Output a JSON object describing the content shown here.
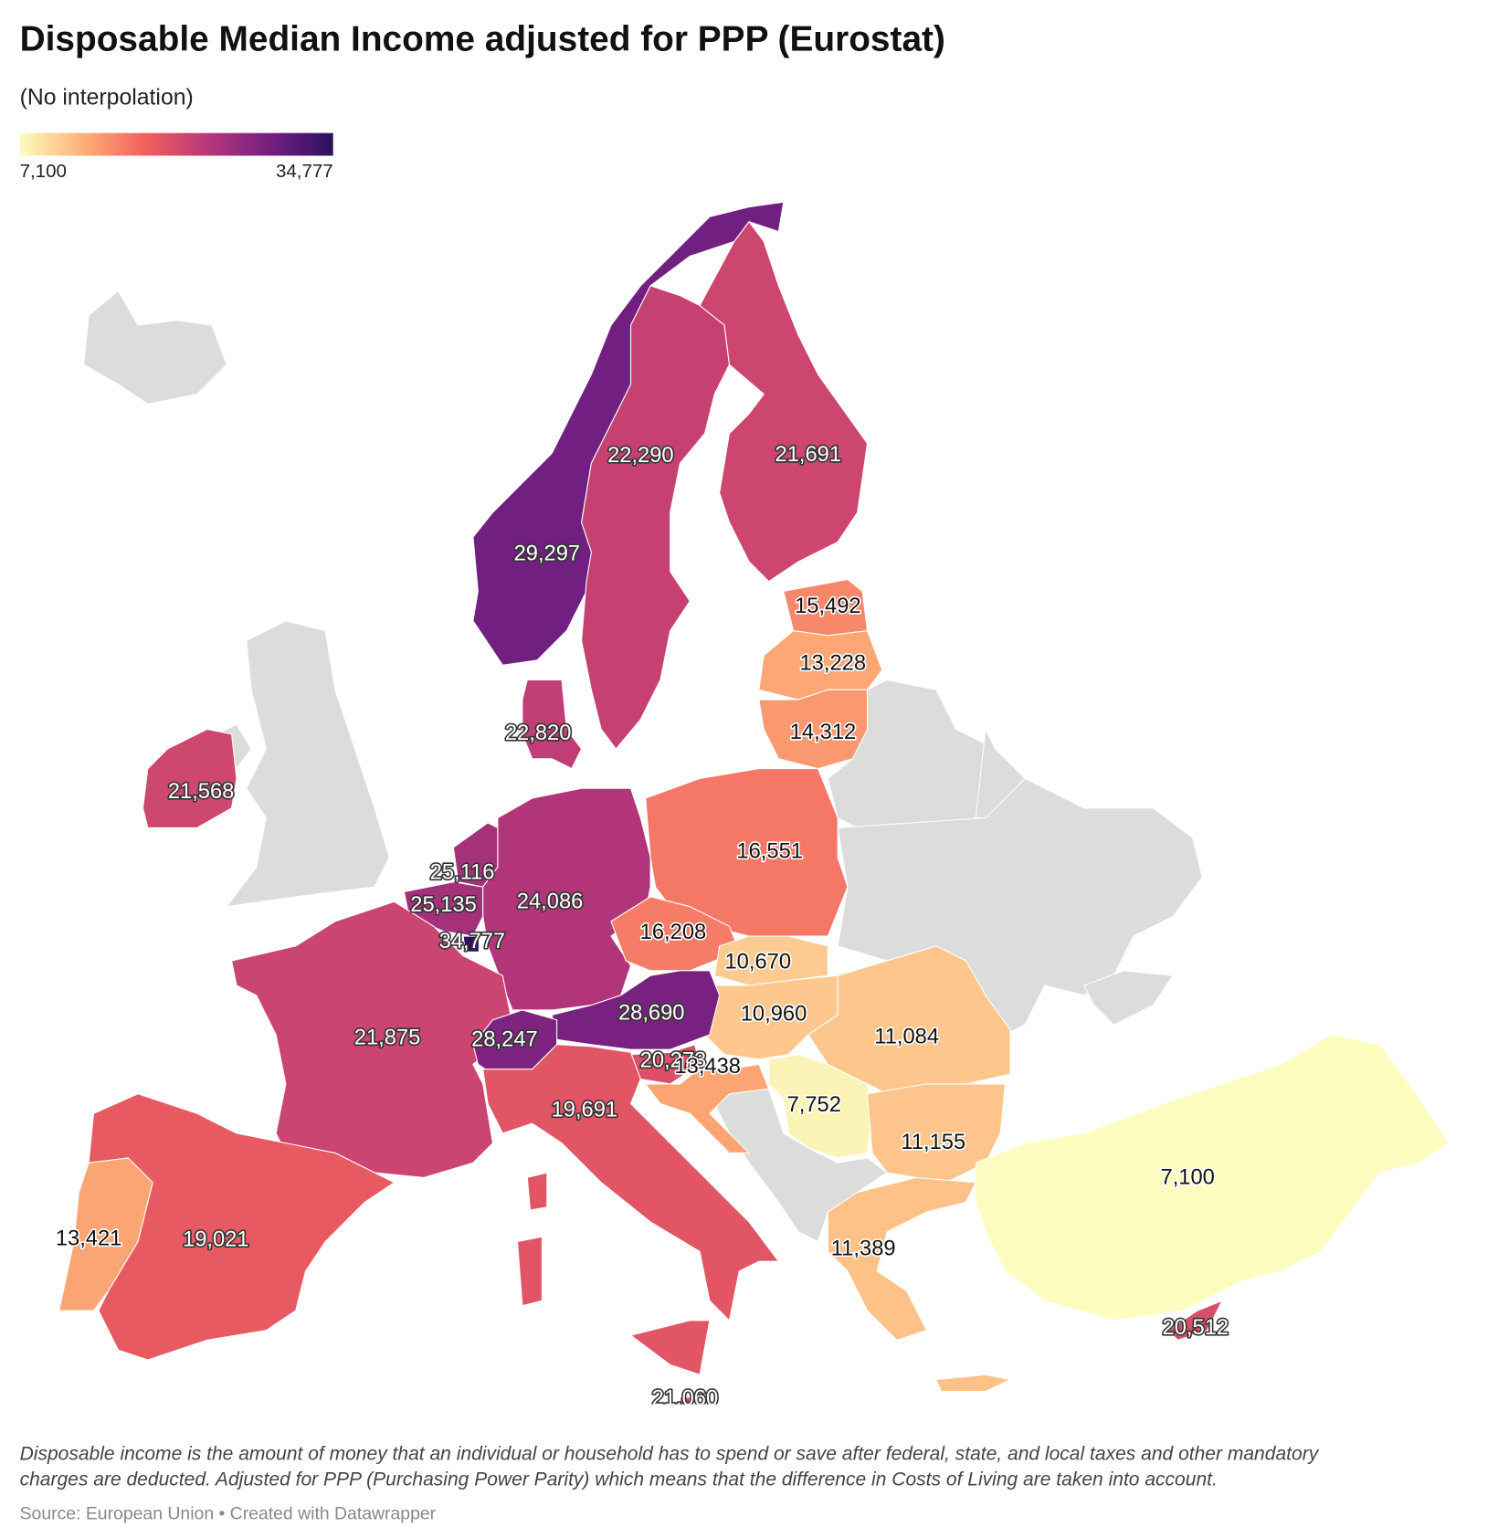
{
  "chart_data": {
    "type": "choropleth",
    "title": "Disposable Median Income adjusted for PPP (Eurostat)",
    "subtitle": "(No interpolation)",
    "colorscale": {
      "min": {
        "value": 7100,
        "label": "7,100"
      },
      "max": {
        "value": 34777,
        "label": "34,777"
      },
      "colors": [
        "#fcfdbf",
        "#feb078",
        "#f1605d",
        "#b73779",
        "#721f81",
        "#2c115f"
      ]
    },
    "values": [
      29297,
      22290,
      21691,
      15492,
      13228,
      14312,
      22820,
      21568,
      25116,
      25135,
      34777,
      24086,
      16551,
      16208,
      10670,
      10960,
      28690,
      21875,
      28247,
      20273,
      13438,
      19691,
      7752,
      11084,
      11155,
      11389,
      7100,
      20512,
      13421,
      19021,
      21060
    ],
    "value_labels": [
      "29,297",
      "22,290",
      "21,691",
      "15,492",
      "13,228",
      "14,312",
      "22,820",
      "21,568",
      "25,116",
      "25,135",
      "34,777",
      "24,086",
      "16,551",
      "16,208",
      "10,670",
      "10,960",
      "28,690",
      "21,875",
      "28,247",
      "20,273",
      "13,438",
      "19,691",
      "7,752",
      "11,084",
      "11,155",
      "11,389",
      "7,100",
      "20,512",
      "13,421",
      "19,021",
      "21,060"
    ],
    "note": "Disposable income is the amount of money that an individual or household has to spend or save after federal, state, and local taxes and other mandatory charges are deducted. Adjusted for PPP (Purchasing Power Parity) which means that the difference in Costs of Living are taken into account.",
    "source": "Source: European Union • Created with Datawrapper"
  }
}
